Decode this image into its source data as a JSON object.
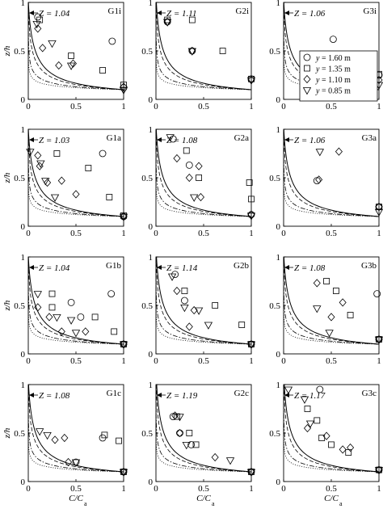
{
  "figure": {
    "ylabel": "z/h",
    "xlabel_main": "C/C",
    "xlabel_sub": "a"
  },
  "chart_data": {
    "type": "scatter",
    "xlim": [
      0,
      1
    ],
    "ylim": [
      0,
      1
    ],
    "xticks": [
      "0",
      "0.5",
      "1"
    ],
    "yticks": [
      "0",
      "0.5",
      "1"
    ],
    "grid": false,
    "legend": {
      "placement": "inside right of panel G3i",
      "entries": [
        {
          "marker": "circle",
          "label_prefix": "y",
          "label_value": "= 1.60 m"
        },
        {
          "marker": "square",
          "label_prefix": "y",
          "label_value": "= 1.35 m"
        },
        {
          "marker": "diamond",
          "label_prefix": "y",
          "label_value": "= 1.10 m"
        },
        {
          "marker": "triangle-down",
          "label_prefix": "y",
          "label_value": "= 0.85 m"
        }
      ]
    },
    "reference_curves": [
      {
        "style": "solid",
        "description": "theoretical profile, solid"
      },
      {
        "style": "dashed",
        "description": "theoretical profile, dashed"
      },
      {
        "style": "dashdot",
        "description": "theoretical profile, dash-dot"
      },
      {
        "style": "dotted",
        "description": "theoretical profile, dotted"
      }
    ],
    "panels": [
      {
        "label": "G1i",
        "z_text": "Z = 1.04",
        "Z": 1.04,
        "series": {
          "circle": [
            [
              0.1,
              0.85
            ],
            [
              0.88,
              0.6
            ],
            [
              1.0,
              0.12
            ]
          ],
          "square": [
            [
              0.12,
              0.82
            ],
            [
              0.45,
              0.45
            ],
            [
              0.78,
              0.3
            ],
            [
              1.0,
              0.15
            ]
          ],
          "diamond": [
            [
              0.1,
              0.73
            ],
            [
              0.15,
              0.53
            ],
            [
              0.32,
              0.35
            ],
            [
              0.47,
              0.37
            ],
            [
              1.0,
              0.13
            ]
          ],
          "triangle": [
            [
              0.09,
              0.78
            ],
            [
              0.25,
              0.58
            ],
            [
              0.45,
              0.35
            ],
            [
              1.0,
              0.1
            ]
          ]
        }
      },
      {
        "label": "G2i",
        "z_text": "Z = 1.11",
        "Z": 1.11,
        "series": {
          "circle": [
            [
              0.12,
              0.8
            ],
            [
              0.38,
              0.5
            ],
            [
              1.0,
              0.21
            ]
          ],
          "square": [
            [
              0.12,
              0.82
            ],
            [
              0.38,
              0.82
            ],
            [
              0.7,
              0.5
            ],
            [
              1.0,
              0.21
            ]
          ],
          "diamond": [
            [
              0.12,
              0.8
            ],
            [
              0.38,
              0.5
            ],
            [
              1.0,
              0.2
            ]
          ],
          "triangle": [
            [
              0.12,
              0.8
            ],
            [
              0.38,
              0.5
            ],
            [
              1.0,
              0.2
            ]
          ]
        }
      },
      {
        "label": "G3i",
        "z_text": "Z = 1.06",
        "Z": 1.06,
        "series": {
          "circle": [
            [
              0.52,
              0.62
            ],
            [
              1.0,
              0.25
            ]
          ],
          "square": [
            [
              1.0,
              0.26
            ]
          ],
          "diamond": [
            [
              1.0,
              0.2
            ]
          ],
          "triangle": [
            [
              1.0,
              0.15
            ]
          ]
        }
      },
      {
        "label": "G1a",
        "z_text": "Z = 1.03",
        "Z": 1.03,
        "series": {
          "circle": [
            [
              0.78,
              0.75
            ],
            [
              1.0,
              0.1
            ]
          ],
          "square": [
            [
              0.3,
              0.75
            ],
            [
              0.63,
              0.6
            ],
            [
              0.85,
              0.3
            ],
            [
              1.0,
              0.11
            ]
          ],
          "diamond": [
            [
              0.1,
              0.73
            ],
            [
              0.12,
              0.62
            ],
            [
              0.2,
              0.45
            ],
            [
              0.35,
              0.47
            ],
            [
              0.5,
              0.33
            ],
            [
              1.0,
              0.1
            ]
          ],
          "triangle": [
            [
              0.02,
              0.77
            ],
            [
              0.13,
              0.65
            ],
            [
              0.18,
              0.47
            ],
            [
              0.28,
              0.3
            ],
            [
              1.0,
              0.1
            ]
          ]
        }
      },
      {
        "label": "G2a",
        "z_text": "Z = 1.08",
        "Z": 1.08,
        "series": {
          "circle": [
            [
              0.18,
              0.9
            ],
            [
              0.35,
              0.63
            ],
            [
              1.0,
              0.12
            ]
          ],
          "square": [
            [
              0.32,
              0.78
            ],
            [
              0.45,
              0.5
            ],
            [
              0.98,
              0.45
            ],
            [
              1.0,
              0.28
            ]
          ],
          "diamond": [
            [
              0.22,
              0.7
            ],
            [
              0.35,
              0.5
            ],
            [
              0.45,
              0.62
            ],
            [
              0.47,
              0.3
            ],
            [
              1.0,
              0.12
            ]
          ],
          "triangle": [
            [
              0.15,
              0.92
            ],
            [
              0.4,
              0.3
            ],
            [
              1.0,
              0.11
            ]
          ]
        }
      },
      {
        "label": "G3a",
        "z_text": "Z = 1.06",
        "Z": 1.06,
        "series": {
          "circle": [
            [
              0.35,
              0.47
            ],
            [
              1.0,
              0.2
            ]
          ],
          "square": [
            [
              1.0,
              0.2
            ]
          ],
          "diamond": [
            [
              0.37,
              0.48
            ],
            [
              0.58,
              0.77
            ],
            [
              1.0,
              0.2
            ]
          ],
          "triangle": [
            [
              0.38,
              0.77
            ],
            [
              1.0,
              0.15
            ]
          ]
        }
      },
      {
        "label": "G1b",
        "z_text": "Z = 1.04",
        "Z": 1.04,
        "series": {
          "circle": [
            [
              0.45,
              0.53
            ],
            [
              0.55,
              0.38
            ],
            [
              0.87,
              0.62
            ],
            [
              1.0,
              0.1
            ]
          ],
          "square": [
            [
              0.25,
              0.62
            ],
            [
              0.25,
              0.48
            ],
            [
              0.7,
              0.38
            ],
            [
              0.9,
              0.23
            ],
            [
              1.0,
              0.1
            ]
          ],
          "diamond": [
            [
              0.1,
              0.48
            ],
            [
              0.22,
              0.38
            ],
            [
              0.35,
              0.23
            ],
            [
              0.6,
              0.23
            ],
            [
              1.0,
              0.1
            ]
          ],
          "triangle": [
            [
              0.1,
              0.62
            ],
            [
              0.3,
              0.38
            ],
            [
              0.45,
              0.35
            ],
            [
              0.5,
              0.22
            ],
            [
              1.0,
              0.1
            ]
          ]
        }
      },
      {
        "label": "G2b",
        "z_text": "Z = 1.14",
        "Z": 1.14,
        "series": {
          "circle": [
            [
              0.2,
              0.82
            ],
            [
              0.3,
              0.55
            ],
            [
              1.0,
              0.1
            ]
          ],
          "square": [
            [
              0.3,
              0.65
            ],
            [
              0.62,
              0.5
            ],
            [
              0.9,
              0.3
            ],
            [
              1.0,
              0.1
            ]
          ],
          "diamond": [
            [
              0.22,
              0.65
            ],
            [
              0.4,
              0.45
            ],
            [
              0.35,
              0.28
            ],
            [
              1.0,
              0.1
            ]
          ],
          "triangle": [
            [
              0.17,
              0.8
            ],
            [
              0.3,
              0.48
            ],
            [
              0.45,
              0.45
            ],
            [
              0.55,
              0.3
            ],
            [
              1.0,
              0.1
            ]
          ]
        }
      },
      {
        "label": "G3b",
        "z_text": "Z = 1.08",
        "Z": 1.08,
        "series": {
          "circle": [
            [
              0.98,
              0.62
            ],
            [
              1.0,
              0.15
            ]
          ],
          "square": [
            [
              0.45,
              0.75
            ],
            [
              0.55,
              0.65
            ],
            [
              0.7,
              0.4
            ],
            [
              1.0,
              0.15
            ]
          ],
          "diamond": [
            [
              0.35,
              0.73
            ],
            [
              0.5,
              0.38
            ],
            [
              0.62,
              0.53
            ],
            [
              1.0,
              0.15
            ]
          ],
          "triangle": [
            [
              0.35,
              0.47
            ],
            [
              0.48,
              0.22
            ],
            [
              1.0,
              0.15
            ]
          ]
        }
      },
      {
        "label": "G1c",
        "z_text": "Z = 1.08",
        "Z": 1.08,
        "series": {
          "circle": [
            [
              0.5,
              0.2
            ],
            [
              0.78,
              0.45
            ],
            [
              1.0,
              0.1
            ]
          ],
          "square": [
            [
              0.8,
              0.48
            ],
            [
              0.95,
              0.42
            ],
            [
              1.0,
              0.1
            ]
          ],
          "diamond": [
            [
              0.28,
              0.43
            ],
            [
              0.38,
              0.45
            ],
            [
              0.42,
              0.2
            ],
            [
              1.0,
              0.1
            ]
          ],
          "triangle": [
            [
              0.12,
              0.52
            ],
            [
              0.2,
              0.48
            ],
            [
              0.5,
              0.2
            ],
            [
              1.0,
              0.1
            ]
          ]
        }
      },
      {
        "label": "G2c",
        "z_text": "Z = 1.19",
        "Z": 1.19,
        "series": {
          "circle": [
            [
              0.18,
              0.67
            ],
            [
              0.25,
              0.5
            ],
            [
              0.37,
              0.38
            ],
            [
              1.0,
              0.1
            ]
          ],
          "square": [
            [
              0.22,
              0.67
            ],
            [
              0.35,
              0.5
            ],
            [
              0.42,
              0.38
            ],
            [
              1.0,
              0.1
            ]
          ],
          "diamond": [
            [
              0.2,
              0.68
            ],
            [
              0.25,
              0.5
            ],
            [
              0.62,
              0.25
            ],
            [
              1.0,
              0.1
            ]
          ],
          "triangle": [
            [
              0.25,
              0.67
            ],
            [
              0.32,
              0.38
            ],
            [
              0.78,
              0.22
            ],
            [
              1.0,
              0.1
            ]
          ]
        }
      },
      {
        "label": "G3c",
        "z_text": "Z = 1.17",
        "Z": 1.17,
        "series": {
          "circle": [
            [
              0.38,
              0.95
            ],
            [
              1.0,
              0.12
            ]
          ],
          "square": [
            [
              0.25,
              0.75
            ],
            [
              0.35,
              0.63
            ],
            [
              0.4,
              0.45
            ],
            [
              0.5,
              0.38
            ],
            [
              0.68,
              0.3
            ],
            [
              1.0,
              0.12
            ]
          ],
          "diamond": [
            [
              0.25,
              0.55
            ],
            [
              0.45,
              0.47
            ],
            [
              0.62,
              0.33
            ],
            [
              0.7,
              0.35
            ],
            [
              1.0,
              0.12
            ]
          ],
          "triangle": [
            [
              0.05,
              0.95
            ],
            [
              0.22,
              0.85
            ],
            [
              0.28,
              0.6
            ],
            [
              1.0,
              0.12
            ]
          ]
        }
      }
    ]
  }
}
